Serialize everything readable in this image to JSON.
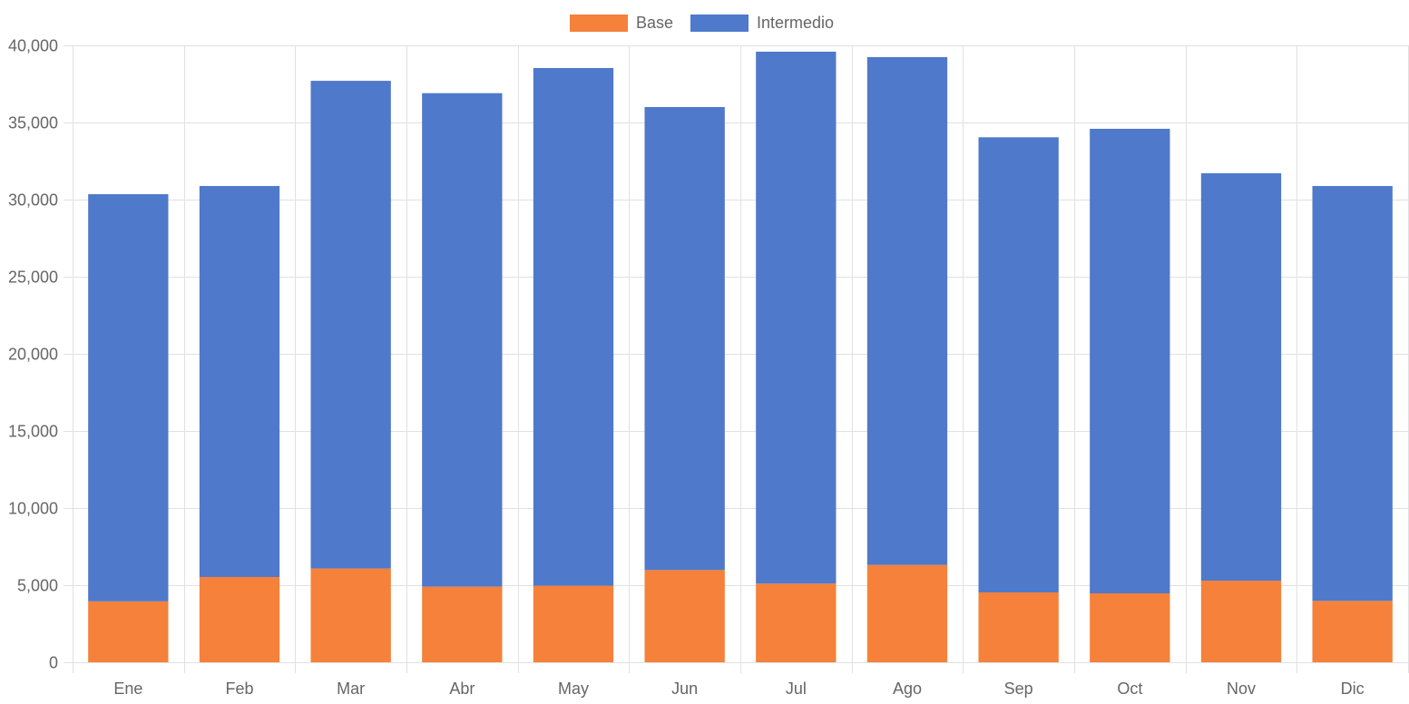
{
  "chart_data": {
    "type": "bar",
    "stacked": true,
    "title": "",
    "xlabel": "",
    "ylabel": "",
    "categories": [
      "Ene",
      "Feb",
      "Mar",
      "Abr",
      "May",
      "Jun",
      "Jul",
      "Ago",
      "Sep",
      "Oct",
      "Nov",
      "Dic"
    ],
    "series": [
      {
        "name": "Base",
        "color": "#f5813a",
        "values": [
          3950,
          5530,
          6080,
          4900,
          4960,
          5980,
          5100,
          6310,
          4530,
          4470,
          5290,
          3980
        ]
      },
      {
        "name": "Intermedio",
        "color": "#4f79ca",
        "values": [
          26400,
          25350,
          31620,
          32000,
          33570,
          30020,
          34490,
          32930,
          29510,
          30120,
          26420,
          26900
        ]
      }
    ],
    "ylim": [
      0,
      40000
    ],
    "yticks": [
      0,
      5000,
      10000,
      15000,
      20000,
      25000,
      30000,
      35000,
      40000
    ],
    "ytick_labels": [
      "0",
      "5,000",
      "10,000",
      "15,000",
      "20,000",
      "25,000",
      "30,000",
      "35,000",
      "40,000"
    ],
    "grid": true,
    "legend_position": "top-center"
  }
}
